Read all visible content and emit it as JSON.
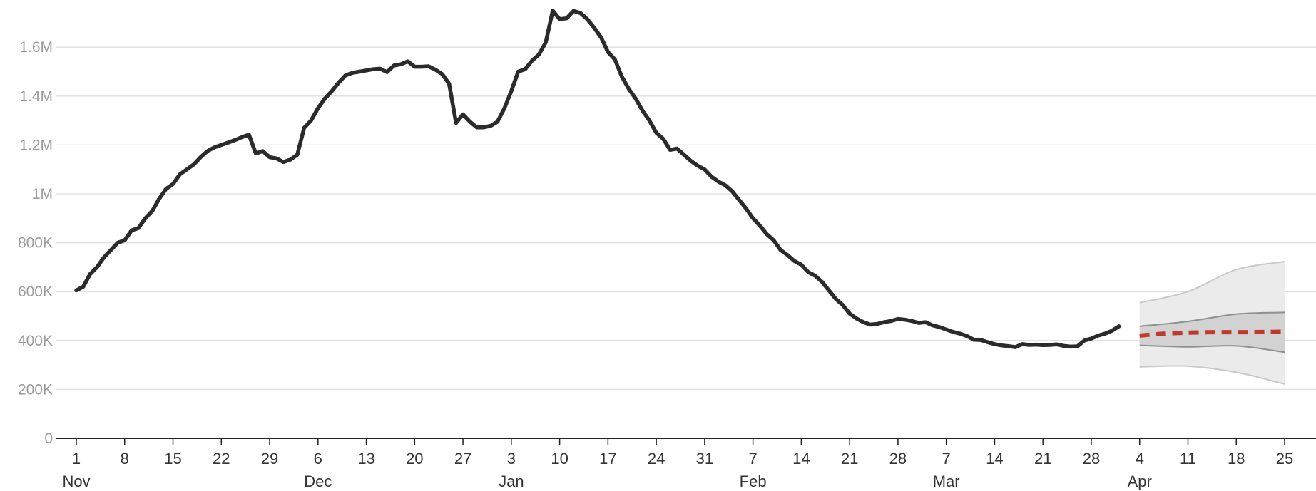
{
  "chart_data": {
    "type": "line",
    "y_unit_note": "values in persons",
    "ylim": [
      0,
      1700000
    ],
    "y_ticks": [
      {
        "value": 0,
        "label": "0"
      },
      {
        "value": 200000,
        "label": "200K"
      },
      {
        "value": 400000,
        "label": "400K"
      },
      {
        "value": 600000,
        "label": "600K"
      },
      {
        "value": 800000,
        "label": "800K"
      },
      {
        "value": 1000000,
        "label": "1M"
      },
      {
        "value": 1200000,
        "label": "1.2M"
      },
      {
        "value": 1400000,
        "label": "1.4M"
      },
      {
        "value": 1600000,
        "label": "1.6M"
      }
    ],
    "x_ticks": [
      {
        "date": "2020-11-01",
        "label": "1"
      },
      {
        "date": "2020-11-08",
        "label": "8"
      },
      {
        "date": "2020-11-15",
        "label": "15"
      },
      {
        "date": "2020-11-22",
        "label": "22"
      },
      {
        "date": "2020-11-29",
        "label": "29"
      },
      {
        "date": "2020-12-06",
        "label": "6"
      },
      {
        "date": "2020-12-13",
        "label": "13"
      },
      {
        "date": "2020-12-20",
        "label": "20"
      },
      {
        "date": "2020-12-27",
        "label": "27"
      },
      {
        "date": "2021-01-03",
        "label": "3"
      },
      {
        "date": "2021-01-10",
        "label": "10"
      },
      {
        "date": "2021-01-17",
        "label": "17"
      },
      {
        "date": "2021-01-24",
        "label": "24"
      },
      {
        "date": "2021-01-31",
        "label": "31"
      },
      {
        "date": "2021-02-07",
        "label": "7"
      },
      {
        "date": "2021-02-14",
        "label": "14"
      },
      {
        "date": "2021-02-21",
        "label": "21"
      },
      {
        "date": "2021-02-28",
        "label": "28"
      },
      {
        "date": "2021-03-07",
        "label": "7"
      },
      {
        "date": "2021-03-14",
        "label": "14"
      },
      {
        "date": "2021-03-21",
        "label": "21"
      },
      {
        "date": "2021-03-28",
        "label": "28"
      },
      {
        "date": "2021-04-04",
        "label": "4"
      },
      {
        "date": "2021-04-11",
        "label": "11"
      },
      {
        "date": "2021-04-18",
        "label": "18"
      },
      {
        "date": "2021-04-25",
        "label": "25"
      }
    ],
    "month_labels": [
      {
        "date": "2020-11-01",
        "label": "Nov"
      },
      {
        "date": "2020-12-06",
        "label": "Dec"
      },
      {
        "date": "2021-01-03",
        "label": "Jan"
      },
      {
        "date": "2021-02-07",
        "label": "Feb"
      },
      {
        "date": "2021-03-07",
        "label": "Mar"
      },
      {
        "date": "2021-04-04",
        "label": "Apr"
      }
    ],
    "grid": true,
    "series": [
      {
        "role": "observed",
        "color": "#2b2b2b",
        "style": "solid",
        "points": [
          [
            "2020-11-01",
            605000
          ],
          [
            "2020-11-02",
            620000
          ],
          [
            "2020-11-03",
            672000
          ],
          [
            "2020-11-04",
            700000
          ],
          [
            "2020-11-05",
            740000
          ],
          [
            "2020-11-06",
            770000
          ],
          [
            "2020-11-07",
            800000
          ],
          [
            "2020-11-08",
            810000
          ],
          [
            "2020-11-09",
            850000
          ],
          [
            "2020-11-10",
            860000
          ],
          [
            "2020-11-11",
            900000
          ],
          [
            "2020-11-12",
            930000
          ],
          [
            "2020-11-13",
            980000
          ],
          [
            "2020-11-14",
            1020000
          ],
          [
            "2020-11-15",
            1040000
          ],
          [
            "2020-11-16",
            1080000
          ],
          [
            "2020-11-17",
            1100000
          ],
          [
            "2020-11-18",
            1120000
          ],
          [
            "2020-11-19",
            1150000
          ],
          [
            "2020-11-20",
            1175000
          ],
          [
            "2020-11-21",
            1190000
          ],
          [
            "2020-11-22",
            1200000
          ],
          [
            "2020-11-23",
            1210000
          ],
          [
            "2020-11-24",
            1220000
          ],
          [
            "2020-11-25",
            1232000
          ],
          [
            "2020-11-26",
            1242000
          ],
          [
            "2020-11-27",
            1165000
          ],
          [
            "2020-11-28",
            1175000
          ],
          [
            "2020-11-29",
            1150000
          ],
          [
            "2020-11-30",
            1145000
          ],
          [
            "2020-12-01",
            1130000
          ],
          [
            "2020-12-02",
            1140000
          ],
          [
            "2020-12-03",
            1160000
          ],
          [
            "2020-12-04",
            1270000
          ],
          [
            "2020-12-05",
            1300000
          ],
          [
            "2020-12-06",
            1350000
          ],
          [
            "2020-12-07",
            1390000
          ],
          [
            "2020-12-08",
            1420000
          ],
          [
            "2020-12-09",
            1455000
          ],
          [
            "2020-12-10",
            1485000
          ],
          [
            "2020-12-11",
            1495000
          ],
          [
            "2020-12-12",
            1500000
          ],
          [
            "2020-12-13",
            1505000
          ],
          [
            "2020-12-14",
            1510000
          ],
          [
            "2020-12-15",
            1512000
          ],
          [
            "2020-12-16",
            1498000
          ],
          [
            "2020-12-17",
            1525000
          ],
          [
            "2020-12-18",
            1530000
          ],
          [
            "2020-12-19",
            1542000
          ],
          [
            "2020-12-20",
            1520000
          ],
          [
            "2020-12-21",
            1520000
          ],
          [
            "2020-12-22",
            1522000
          ],
          [
            "2020-12-23",
            1508000
          ],
          [
            "2020-12-24",
            1490000
          ],
          [
            "2020-12-25",
            1450000
          ],
          [
            "2020-12-26",
            1290000
          ],
          [
            "2020-12-27",
            1325000
          ],
          [
            "2020-12-28",
            1295000
          ],
          [
            "2020-12-29",
            1272000
          ],
          [
            "2020-12-30",
            1272000
          ],
          [
            "2020-12-31",
            1278000
          ],
          [
            "2021-01-01",
            1295000
          ],
          [
            "2021-01-02",
            1350000
          ],
          [
            "2021-01-03",
            1420000
          ],
          [
            "2021-01-04",
            1500000
          ],
          [
            "2021-01-05",
            1510000
          ],
          [
            "2021-01-06",
            1545000
          ],
          [
            "2021-01-07",
            1570000
          ],
          [
            "2021-01-08",
            1620000
          ],
          [
            "2021-01-09",
            1750000
          ],
          [
            "2021-01-10",
            1715000
          ],
          [
            "2021-01-11",
            1718000
          ],
          [
            "2021-01-12",
            1748000
          ],
          [
            "2021-01-13",
            1740000
          ],
          [
            "2021-01-14",
            1715000
          ],
          [
            "2021-01-15",
            1680000
          ],
          [
            "2021-01-16",
            1640000
          ],
          [
            "2021-01-17",
            1580000
          ],
          [
            "2021-01-18",
            1550000
          ],
          [
            "2021-01-19",
            1480000
          ],
          [
            "2021-01-20",
            1430000
          ],
          [
            "2021-01-21",
            1390000
          ],
          [
            "2021-01-22",
            1340000
          ],
          [
            "2021-01-23",
            1300000
          ],
          [
            "2021-01-24",
            1250000
          ],
          [
            "2021-01-25",
            1225000
          ],
          [
            "2021-01-26",
            1180000
          ],
          [
            "2021-01-27",
            1185000
          ],
          [
            "2021-01-28",
            1160000
          ],
          [
            "2021-01-29",
            1135000
          ],
          [
            "2021-01-30",
            1115000
          ],
          [
            "2021-01-31",
            1100000
          ],
          [
            "2021-02-01",
            1070000
          ],
          [
            "2021-02-02",
            1050000
          ],
          [
            "2021-02-03",
            1035000
          ],
          [
            "2021-02-04",
            1010000
          ],
          [
            "2021-02-05",
            975000
          ],
          [
            "2021-02-06",
            940000
          ],
          [
            "2021-02-07",
            900000
          ],
          [
            "2021-02-08",
            870000
          ],
          [
            "2021-02-09",
            835000
          ],
          [
            "2021-02-10",
            810000
          ],
          [
            "2021-02-11",
            770000
          ],
          [
            "2021-02-12",
            750000
          ],
          [
            "2021-02-13",
            725000
          ],
          [
            "2021-02-14",
            710000
          ],
          [
            "2021-02-15",
            680000
          ],
          [
            "2021-02-16",
            665000
          ],
          [
            "2021-02-17",
            640000
          ],
          [
            "2021-02-18",
            605000
          ],
          [
            "2021-02-19",
            570000
          ],
          [
            "2021-02-20",
            545000
          ],
          [
            "2021-02-21",
            510000
          ],
          [
            "2021-02-22",
            490000
          ],
          [
            "2021-02-23",
            475000
          ],
          [
            "2021-02-24",
            465000
          ],
          [
            "2021-02-25",
            468000
          ],
          [
            "2021-02-26",
            475000
          ],
          [
            "2021-02-27",
            480000
          ],
          [
            "2021-02-28",
            488000
          ],
          [
            "2021-03-01",
            485000
          ],
          [
            "2021-03-02",
            480000
          ],
          [
            "2021-03-03",
            472000
          ],
          [
            "2021-03-04",
            475000
          ],
          [
            "2021-03-05",
            462000
          ],
          [
            "2021-03-06",
            455000
          ],
          [
            "2021-03-07",
            445000
          ],
          [
            "2021-03-08",
            435000
          ],
          [
            "2021-03-09",
            428000
          ],
          [
            "2021-03-10",
            418000
          ],
          [
            "2021-03-11",
            403000
          ],
          [
            "2021-03-12",
            402000
          ],
          [
            "2021-03-13",
            393000
          ],
          [
            "2021-03-14",
            385000
          ],
          [
            "2021-03-15",
            380000
          ],
          [
            "2021-03-16",
            377000
          ],
          [
            "2021-03-17",
            373000
          ],
          [
            "2021-03-18",
            385000
          ],
          [
            "2021-03-19",
            382000
          ],
          [
            "2021-03-20",
            383000
          ],
          [
            "2021-03-21",
            381000
          ],
          [
            "2021-03-22",
            382000
          ],
          [
            "2021-03-23",
            384000
          ],
          [
            "2021-03-24",
            378000
          ],
          [
            "2021-03-25",
            375000
          ],
          [
            "2021-03-26",
            376000
          ],
          [
            "2021-03-27",
            400000
          ],
          [
            "2021-03-28",
            408000
          ],
          [
            "2021-03-29",
            420000
          ],
          [
            "2021-03-30",
            428000
          ],
          [
            "2021-03-31",
            440000
          ],
          [
            "2021-04-01",
            458000
          ]
        ]
      },
      {
        "role": "projection-median",
        "color": "#c0392b",
        "style": "dashed",
        "points": [
          [
            "2021-04-04",
            420000
          ],
          [
            "2021-04-07",
            427000
          ],
          [
            "2021-04-11",
            432000
          ],
          [
            "2021-04-15",
            434000
          ],
          [
            "2021-04-19",
            434000
          ],
          [
            "2021-04-25",
            436000
          ]
        ]
      }
    ],
    "projection_inner_band": {
      "fill": "#d2d2d2",
      "line_color": "#8f8f8f",
      "upper": [
        [
          "2021-04-04",
          458000
        ],
        [
          "2021-04-11",
          478000
        ],
        [
          "2021-04-18",
          508000
        ],
        [
          "2021-04-25",
          515000
        ]
      ],
      "lower": [
        [
          "2021-04-04",
          380000
        ],
        [
          "2021-04-11",
          374000
        ],
        [
          "2021-04-18",
          378000
        ],
        [
          "2021-04-25",
          352000
        ]
      ]
    },
    "projection_outer_band": {
      "fill": "#ebebeb",
      "line_color": "#c9c9c9",
      "upper": [
        [
          "2021-04-04",
          555000
        ],
        [
          "2021-04-11",
          600000
        ],
        [
          "2021-04-18",
          690000
        ],
        [
          "2021-04-25",
          723000
        ]
      ],
      "lower": [
        [
          "2021-04-04",
          292000
        ],
        [
          "2021-04-11",
          295000
        ],
        [
          "2021-04-18",
          270000
        ],
        [
          "2021-04-25",
          222000
        ]
      ]
    }
  }
}
